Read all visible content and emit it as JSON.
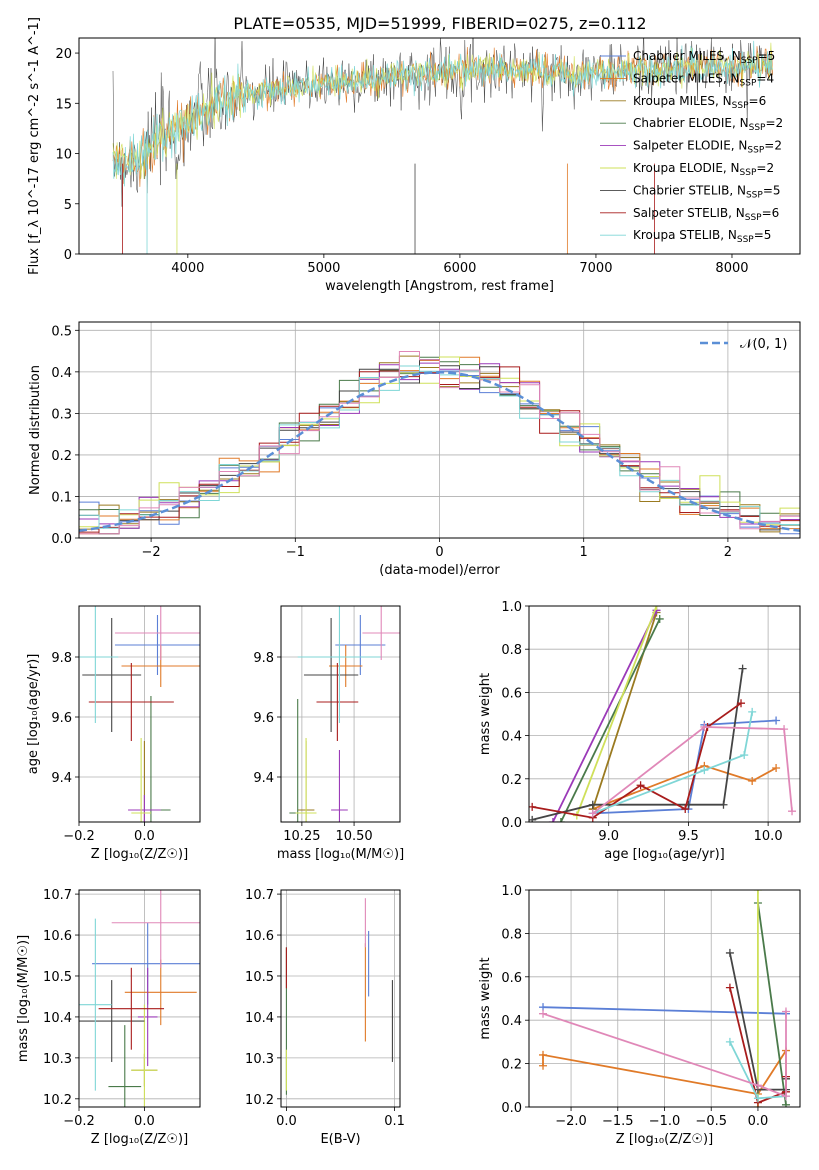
{
  "colors": {
    "chabrier_miles": "#5b7fd6",
    "salpeter_miles": "#e07a28",
    "kroupa_miles": "#9a7a20",
    "chabrier_elodie": "#4a7a4a",
    "salpeter_elodie": "#9b3ab8",
    "kroupa_elodie": "#cfe05a",
    "chabrier_stelib": "#454545",
    "salpeter_stelib": "#a81c1c",
    "kroupa_stelib": "#7fd6d6",
    "pink": "#e088b8",
    "normal_curve": "#5b8fd6",
    "grid": "#b0b0b0"
  },
  "chart_data": [
    {
      "id": "spectrum",
      "type": "line",
      "title": "PLATE=0535, MJD=51999, FIBERID=0275, z=0.112",
      "xlabel": "wavelength [Angstrom, rest frame]",
      "ylabel": "Flux [f_λ 10^-17 erg cm^-2 s^-1 A^-1]",
      "xlim": [
        3200,
        8500
      ],
      "ylim": [
        0,
        21.5
      ],
      "xticks": [
        "4000",
        "5000",
        "6000",
        "7000",
        "8000"
      ],
      "yticks": [
        "0",
        "5",
        "10",
        "15",
        "20"
      ],
      "grid": false,
      "legend_position": "top-right",
      "legend": [
        {
          "label": "Chabrier MILES, N",
          "sub": "SSP",
          "value": "=5"
        },
        {
          "label": "Salpeter MILES, N",
          "sub": "SSP",
          "value": "=4"
        },
        {
          "label": "Kroupa MILES, N",
          "sub": "SSP",
          "value": "=6"
        },
        {
          "label": "Chabrier ELODIE, N",
          "sub": "SSP",
          "value": "=2"
        },
        {
          "label": "Salpeter ELODIE, N",
          "sub": "SSP",
          "value": "=2"
        },
        {
          "label": "Kroupa ELODIE, N",
          "sub": "SSP",
          "value": "=2"
        },
        {
          "label": "Chabrier STELIB, N",
          "sub": "SSP",
          "value": "=5"
        },
        {
          "label": "Salpeter STELIB, N",
          "sub": "SSP",
          "value": "=6"
        },
        {
          "label": "Kroupa STELIB, N",
          "sub": "SSP",
          "value": "=5"
        }
      ],
      "continuum": {
        "x": [
          3450,
          3600,
          3800,
          4000,
          4200,
          4500,
          4800,
          5000,
          5200,
          5500,
          5800,
          6000,
          6300,
          6600,
          7000,
          7300,
          7600,
          8000,
          8300
        ],
        "y": [
          9.5,
          9.0,
          11.5,
          13.5,
          15.0,
          16.0,
          16.6,
          17.0,
          17.2,
          17.5,
          18.0,
          18.3,
          18.5,
          18.2,
          18.0,
          18.3,
          18.5,
          18.7,
          19.0
        ]
      }
    },
    {
      "id": "residuals",
      "type": "histogram",
      "xlabel": "(data-model)/error",
      "ylabel": "Normed distribution",
      "xlim": [
        -2.5,
        2.5
      ],
      "ylim": [
        0,
        0.52
      ],
      "xticks": [
        "−2",
        "−1",
        "0",
        "1",
        "2"
      ],
      "yticks": [
        "0.0",
        "0.1",
        "0.2",
        "0.3",
        "0.4",
        "0.5"
      ],
      "grid": true,
      "legend_position": "top-right",
      "curve_label": "𝒩(0, 1)",
      "bins": 36
    },
    {
      "id": "age_vs_Z",
      "type": "scatter",
      "xlabel": "Z [log₁₀(Z/Z☉)]",
      "ylabel": "age  [log₁₀(age/yr)]",
      "xlim": [
        -0.2,
        0.17
      ],
      "ylim": [
        9.25,
        9.97
      ],
      "xticks": [
        "−0.2",
        "0.0"
      ],
      "yticks": [
        "9.4",
        "9.6",
        "9.8"
      ],
      "grid": true,
      "points": [
        {
          "x": 0.04,
          "y": 9.84,
          "xerr": 0.13,
          "yerr": 0.1,
          "c": "chabrier_miles"
        },
        {
          "x": 0.05,
          "y": 9.77,
          "xerr": 0.12,
          "yerr": 0.07,
          "c": "salpeter_miles"
        },
        {
          "x": 0.0,
          "y": 9.29,
          "xerr": 0.03,
          "yerr": 0.23,
          "c": "kroupa_miles"
        },
        {
          "x": 0.02,
          "y": 9.29,
          "xerr": 0.06,
          "yerr": 0.38,
          "c": "chabrier_elodie"
        },
        {
          "x": 0.0,
          "y": 9.29,
          "xerr": 0.05,
          "yerr": 0.05,
          "c": "salpeter_elodie"
        },
        {
          "x": -0.01,
          "y": 9.28,
          "xerr": 0.03,
          "yerr": 0.25,
          "c": "kroupa_elodie"
        },
        {
          "x": -0.1,
          "y": 9.74,
          "xerr": 0.09,
          "yerr": 0.19,
          "c": "chabrier_stelib"
        },
        {
          "x": -0.04,
          "y": 9.65,
          "xerr": 0.13,
          "yerr": 0.13,
          "c": "salpeter_stelib"
        },
        {
          "x": -0.15,
          "y": 9.8,
          "xerr": 0.07,
          "yerr": 0.22,
          "c": "kroupa_stelib"
        },
        {
          "x": 0.05,
          "y": 9.88,
          "xerr": 0.14,
          "yerr": 0.09,
          "c": "pink"
        }
      ]
    },
    {
      "id": "age_vs_mass",
      "type": "scatter",
      "xlabel": "mass [log₁₀(M/M☉)]",
      "ylabel": "",
      "xlim": [
        10.15,
        10.72
      ],
      "ylim": [
        9.25,
        9.97
      ],
      "xticks": [
        "10.25",
        "10.50"
      ],
      "yticks": [
        "9.4",
        "9.6",
        "9.8"
      ],
      "grid": true,
      "points": [
        {
          "x": 10.53,
          "y": 9.84,
          "xerr": 0.12,
          "yerr": 0.1,
          "c": "chabrier_miles"
        },
        {
          "x": 10.46,
          "y": 9.77,
          "xerr": 0.08,
          "yerr": 0.07,
          "c": "salpeter_miles"
        },
        {
          "x": 10.27,
          "y": 9.29,
          "xerr": 0.04,
          "yerr": 0.23,
          "c": "kroupa_miles"
        },
        {
          "x": 10.23,
          "y": 9.28,
          "xerr": 0.04,
          "yerr": 0.38,
          "c": "chabrier_elodie"
        },
        {
          "x": 10.43,
          "y": 9.29,
          "xerr": 0.04,
          "yerr": 0.2,
          "c": "salpeter_elodie"
        },
        {
          "x": 10.27,
          "y": 9.28,
          "xerr": 0.05,
          "yerr": 0.25,
          "c": "kroupa_elodie"
        },
        {
          "x": 10.39,
          "y": 9.74,
          "xerr": 0.13,
          "yerr": 0.19,
          "c": "chabrier_stelib"
        },
        {
          "x": 10.42,
          "y": 9.65,
          "xerr": 0.1,
          "yerr": 0.13,
          "c": "salpeter_stelib"
        },
        {
          "x": 10.43,
          "y": 9.8,
          "xerr": 0.2,
          "yerr": 0.22,
          "c": "kroupa_stelib"
        },
        {
          "x": 10.63,
          "y": 9.88,
          "xerr": 0.09,
          "yerr": 0.09,
          "c": "pink"
        }
      ]
    },
    {
      "id": "massweight_vs_age",
      "type": "line",
      "xlabel": "age  [log₁₀(age/yr)]",
      "ylabel": "mass weight",
      "xlim": [
        8.5,
        10.2
      ],
      "ylim": [
        0,
        1.0
      ],
      "xticks": [
        "9.0",
        "9.5",
        "10.0"
      ],
      "yticks": [
        "0.0",
        "0.2",
        "0.4",
        "0.6",
        "0.8",
        "1.0"
      ],
      "grid": true,
      "series": [
        {
          "c": "chabrier_miles",
          "x": [
            8.9,
            9.5,
            9.6,
            10.05
          ],
          "y": [
            0.04,
            0.06,
            0.45,
            0.47
          ]
        },
        {
          "c": "salpeter_miles",
          "x": [
            8.9,
            9.6,
            9.9,
            10.05
          ],
          "y": [
            0.06,
            0.26,
            0.19,
            0.25
          ]
        },
        {
          "c": "kroupa_miles",
          "x": [
            8.9,
            9.3
          ],
          "y": [
            0.06,
            0.97
          ]
        },
        {
          "c": "chabrier_elodie",
          "x": [
            8.7,
            9.32
          ],
          "y": [
            0.0,
            0.94
          ]
        },
        {
          "c": "salpeter_elodie",
          "x": [
            8.65,
            9.3
          ],
          "y": [
            0.0,
            0.98
          ]
        },
        {
          "c": "kroupa_elodie",
          "x": [
            8.8,
            9.3
          ],
          "y": [
            0.03,
            1.0
          ]
        },
        {
          "c": "chabrier_stelib",
          "x": [
            8.52,
            8.9,
            9.5,
            9.72,
            9.84
          ],
          "y": [
            0.01,
            0.08,
            0.08,
            0.08,
            0.71
          ]
        },
        {
          "c": "salpeter_stelib",
          "x": [
            8.52,
            8.9,
            9.2,
            9.48,
            9.62,
            9.83
          ],
          "y": [
            0.07,
            0.02,
            0.17,
            0.06,
            0.44,
            0.55
          ]
        },
        {
          "c": "kroupa_stelib",
          "x": [
            8.9,
            9.6,
            9.85,
            9.9
          ],
          "y": [
            0.04,
            0.24,
            0.31,
            0.51
          ]
        },
        {
          "c": "pink",
          "x": [
            8.9,
            9.6,
            10.1,
            10.15
          ],
          "y": [
            0.04,
            0.44,
            0.43,
            0.05
          ]
        }
      ]
    },
    {
      "id": "mass_vs_Z",
      "type": "scatter",
      "xlabel": "Z [log₁₀(Z/Z☉)]",
      "ylabel": "mass [log₁₀(M/M☉)]",
      "xlim": [
        -0.2,
        0.17
      ],
      "ylim": [
        10.18,
        10.71
      ],
      "xticks": [
        "−0.2",
        "0.0"
      ],
      "yticks": [
        "10.2",
        "10.3",
        "10.4",
        "10.5",
        "10.6",
        "10.7"
      ],
      "grid": true,
      "points": [
        {
          "x": 0.01,
          "y": 10.53,
          "xerr": 0.17,
          "yerr": 0.1,
          "c": "chabrier_miles"
        },
        {
          "x": 0.05,
          "y": 10.46,
          "xerr": 0.11,
          "yerr": 0.08,
          "c": "salpeter_miles"
        },
        {
          "x": 0.0,
          "y": 10.27,
          "xerr": 0.04,
          "yerr": 0.04,
          "c": "kroupa_miles"
        },
        {
          "x": -0.06,
          "y": 10.23,
          "xerr": 0.05,
          "yerr": 0.15,
          "c": "chabrier_elodie"
        },
        {
          "x": 0.01,
          "y": 10.4,
          "xerr": 0.03,
          "yerr": 0.12,
          "c": "salpeter_elodie"
        },
        {
          "x": 0.0,
          "y": 10.27,
          "xerr": 0.04,
          "yerr": 0.16,
          "c": "kroupa_elodie"
        },
        {
          "x": -0.1,
          "y": 10.39,
          "xerr": 0.1,
          "yerr": 0.1,
          "c": "chabrier_stelib"
        },
        {
          "x": -0.04,
          "y": 10.42,
          "xerr": 0.1,
          "yerr": 0.1,
          "c": "salpeter_stelib"
        },
        {
          "x": -0.15,
          "y": 10.43,
          "xerr": 0.05,
          "yerr": 0.21,
          "c": "kroupa_stelib"
        },
        {
          "x": 0.05,
          "y": 10.63,
          "xerr": 0.15,
          "yerr": 0.11,
          "c": "pink"
        }
      ]
    },
    {
      "id": "mass_vs_ebv",
      "type": "scatter",
      "xlabel": "E(B-V)",
      "ylabel": "",
      "xlim": [
        -0.005,
        0.105
      ],
      "ylim": [
        10.18,
        10.71
      ],
      "xticks": [
        "0.0",
        "0.1"
      ],
      "yticks": [
        "10.2",
        "10.3",
        "10.4",
        "10.5",
        "10.6",
        "10.7"
      ],
      "grid": true,
      "points": [
        {
          "x": 0.076,
          "y": 10.53,
          "yerr": 0.08,
          "c": "chabrier_miles"
        },
        {
          "x": 0.073,
          "y": 10.46,
          "yerr": 0.12,
          "c": "salpeter_miles"
        },
        {
          "x": 0.0,
          "y": 10.39,
          "yerr": 0.18,
          "c": "chabrier_elodie"
        },
        {
          "x": 0.0,
          "y": 10.27,
          "yerr": 0.05,
          "c": "kroupa_elodie"
        },
        {
          "x": 0.098,
          "y": 10.39,
          "yerr": 0.1,
          "c": "chabrier_stelib"
        },
        {
          "x": 0.0,
          "y": 10.52,
          "yerr": 0.05,
          "c": "salpeter_stelib"
        },
        {
          "x": 0.073,
          "y": 10.63,
          "yerr": 0.06,
          "c": "pink"
        }
      ]
    },
    {
      "id": "massweight_vs_Z",
      "type": "line",
      "xlabel": "Z [log₁₀(Z/Z☉)]",
      "ylabel": "mass weight",
      "xlim": [
        -2.45,
        0.45
      ],
      "ylim": [
        0,
        1.0
      ],
      "xticks": [
        "−2.0",
        "−1.5",
        "−1.0",
        "−0.5",
        "0.0"
      ],
      "yticks": [
        "0.0",
        "0.2",
        "0.4",
        "0.6",
        "0.8",
        "1.0"
      ],
      "grid": true,
      "series": [
        {
          "c": "chabrier_miles",
          "x": [
            -2.3,
            0.3
          ],
          "y": [
            0.46,
            0.43
          ]
        },
        {
          "c": "salpeter_miles",
          "x": [
            -2.3,
            -2.3,
            0.0,
            0.3,
            0.3
          ],
          "y": [
            0.19,
            0.24,
            0.06,
            0.26,
            0.13
          ]
        },
        {
          "c": "chabrier_elodie",
          "x": [
            0.0,
            0.3
          ],
          "y": [
            0.94,
            0.01
          ]
        },
        {
          "c": "kroupa_elodie",
          "x": [
            0.0,
            0.0
          ],
          "y": [
            0.0,
            1.0
          ]
        },
        {
          "c": "chabrier_stelib",
          "x": [
            -0.3,
            0.0,
            0.3,
            0.3
          ],
          "y": [
            0.71,
            0.08,
            0.08,
            0.13
          ]
        },
        {
          "c": "salpeter_stelib",
          "x": [
            -0.3,
            0.0,
            0.3,
            0.3
          ],
          "y": [
            0.55,
            0.02,
            0.07,
            0.14
          ]
        },
        {
          "c": "kroupa_stelib",
          "x": [
            -0.3,
            0.0,
            0.3
          ],
          "y": [
            0.3,
            0.04,
            0.05
          ]
        },
        {
          "c": "pink",
          "x": [
            -2.3,
            0.0,
            0.3,
            0.3
          ],
          "y": [
            0.43,
            0.1,
            0.05,
            0.44
          ]
        }
      ]
    }
  ]
}
